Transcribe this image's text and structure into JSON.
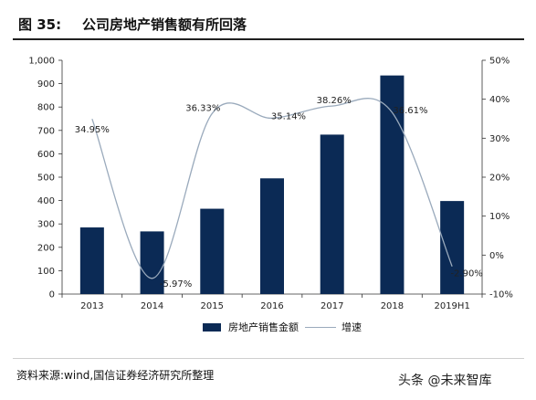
{
  "header": {
    "figure_label": "图 35:",
    "title": "公司房地产销售额有所回落"
  },
  "chart_data": {
    "type": "bar",
    "categories": [
      "2013",
      "2014",
      "2015",
      "2016",
      "2017",
      "2018",
      "2019H1"
    ],
    "series": [
      {
        "name": "房地产销售金额",
        "type": "bar",
        "axis": "left",
        "color": "#0b2a55",
        "values": [
          285,
          268,
          365,
          495,
          682,
          935,
          398
        ]
      },
      {
        "name": "增速",
        "type": "line",
        "axis": "right",
        "smooth": true,
        "color": "#9aaabc",
        "values": [
          34.95,
          -5.97,
          36.33,
          35.14,
          38.26,
          36.61,
          -2.9
        ],
        "labels": [
          "34.95%",
          "-5.97%",
          "36.33%",
          "35.14%",
          "38.26%",
          "36.61%",
          "-2.90%"
        ]
      }
    ],
    "y_left": {
      "ylim": [
        0,
        1000
      ],
      "ticks": [
        0,
        100,
        200,
        300,
        400,
        500,
        600,
        700,
        800,
        900,
        1000
      ],
      "tick_labels": [
        "0",
        "100",
        "200",
        "300",
        "400",
        "500",
        "600",
        "700",
        "800",
        "900",
        "1,000"
      ]
    },
    "y_right": {
      "ylim": [
        -10,
        50
      ],
      "ticks": [
        -10,
        0,
        10,
        20,
        30,
        40,
        50
      ],
      "tick_labels": [
        "-10%",
        "0%",
        "10%",
        "20%",
        "30%",
        "40%",
        "50%"
      ]
    },
    "grid": false,
    "legend_position": "bottom"
  },
  "legend": {
    "bar_label": "房地产销售金额",
    "line_label": "增速"
  },
  "footer": {
    "source": "资料来源:wind,国信证券经济研究所整理",
    "watermark": "头条 @未来智库"
  }
}
